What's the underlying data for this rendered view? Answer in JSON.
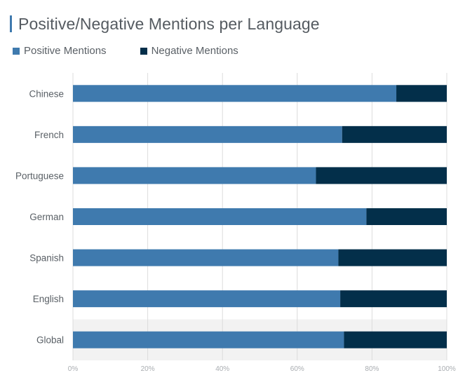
{
  "colors": {
    "positive": "#3f7aae",
    "negative": "#032f4a",
    "grid": "#dcdcdc",
    "highlight_row": "#f2f2f2",
    "title_accent": "#3f7aae"
  },
  "chart_data": {
    "type": "bar",
    "orientation": "horizontal",
    "stacked": true,
    "title": "Positive/Negative Mentions per Language",
    "xlabel": "",
    "ylabel": "",
    "xlim": [
      0,
      100
    ],
    "x_ticks": [
      "0%",
      "20%",
      "40%",
      "60%",
      "80%",
      "100%"
    ],
    "grid": true,
    "legend_position": "top-left",
    "categories": [
      "Chinese",
      "French",
      "Portuguese",
      "German",
      "Spanish",
      "English",
      "Global"
    ],
    "series": [
      {
        "name": "Positive Mentions",
        "color": "#3f7aae",
        "values": [
          86.5,
          72,
          65,
          78.5,
          71,
          71.5,
          72.5
        ]
      },
      {
        "name": "Negative Mentions",
        "color": "#032f4a",
        "values": [
          13.5,
          28,
          35,
          21.5,
          29,
          28.5,
          27.5
        ]
      }
    ],
    "highlighted_category": "Global"
  }
}
